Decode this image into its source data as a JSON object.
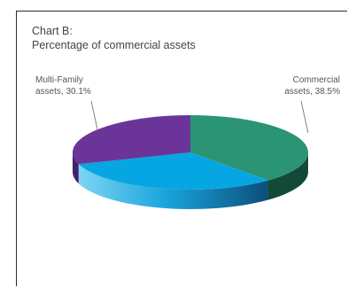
{
  "chart_data": {
    "type": "pie",
    "title": "Chart B:",
    "subtitle": "Percentage of commercial assets",
    "slices": [
      {
        "label_line1": "Commercial",
        "label_line2": "assets, 38.5%",
        "value": 38.5,
        "color": "#2a9474",
        "side_color": "#134a37"
      },
      {
        "label_line1": "",
        "label_line2": "",
        "value": 31.4,
        "color": "#06a6e3",
        "side_color": "#0a6fa8"
      },
      {
        "label_line1": "Multi-Family",
        "label_line2": "assets, 30.1%",
        "value": 30.1,
        "color": "#6a3499",
        "side_color": "#45206a"
      }
    ]
  }
}
